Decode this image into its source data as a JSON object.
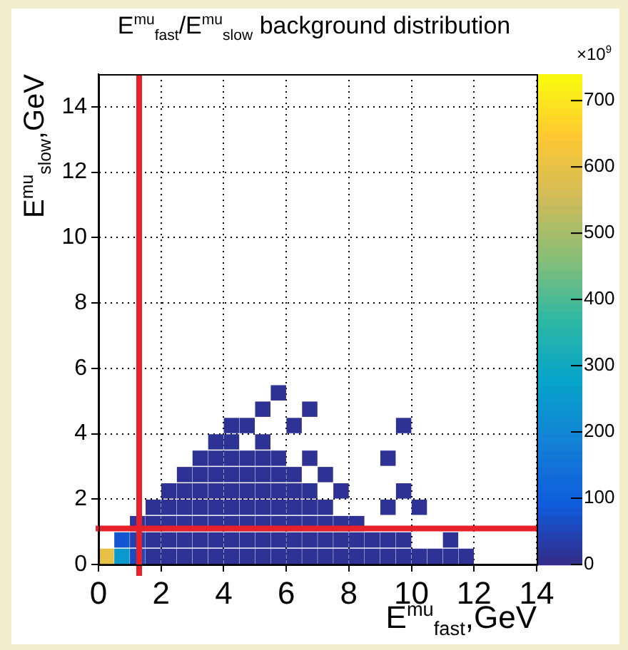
{
  "chart_data": {
    "type": "scatter",
    "title": "E$^{mu}$$_{fast}$/E$^{mu}$$_{slow}$ background distribution",
    "xlabel": "E$^{mu}$$_{fast}$,GeV",
    "ylabel": "E$^{mu}$$_{slow}$,GeV",
    "x": [
      0.25,
      0.75,
      0.75,
      1.25,
      1.25,
      1.25,
      1.75,
      1.75,
      1.75,
      1.75,
      2.25,
      2.25,
      2.25,
      2.25,
      2.25,
      2.75,
      2.75,
      2.75,
      2.75,
      2.75,
      2.75,
      3.25,
      3.25,
      3.25,
      3.25,
      3.25,
      3.25,
      3.25,
      3.75,
      3.75,
      3.75,
      3.75,
      3.75,
      3.75,
      3.75,
      3.75,
      4.25,
      4.25,
      4.25,
      4.25,
      4.25,
      4.25,
      4.25,
      4.25,
      4.25,
      4.75,
      4.75,
      4.75,
      4.75,
      4.75,
      4.75,
      4.75,
      4.75,
      5.25,
      5.25,
      5.25,
      5.25,
      5.25,
      5.25,
      5.25,
      5.25,
      5.25,
      5.75,
      5.75,
      5.75,
      5.75,
      5.75,
      5.75,
      5.75,
      5.75,
      6.25,
      6.25,
      6.25,
      6.25,
      6.25,
      6.25,
      6.25,
      6.75,
      6.75,
      6.75,
      6.75,
      6.75,
      6.75,
      6.75,
      7.25,
      7.25,
      7.25,
      7.25,
      7.25,
      7.75,
      7.75,
      7.75,
      7.75,
      8.25,
      8.25,
      8.25,
      8.75,
      8.75,
      9.25,
      9.25,
      9.25,
      9.25,
      9.75,
      9.75,
      9.75,
      9.75,
      10.25,
      10.25,
      10.75,
      11.25,
      11.25,
      11.75
    ],
    "values": [
      0.25,
      0.25,
      0.75,
      0.25,
      0.75,
      1.25,
      0.25,
      0.75,
      1.25,
      1.75,
      0.25,
      0.75,
      1.25,
      1.75,
      2.25,
      0.25,
      0.75,
      1.25,
      1.75,
      2.25,
      2.75,
      0.25,
      0.75,
      1.25,
      1.75,
      2.25,
      2.75,
      3.25,
      0.25,
      0.75,
      1.25,
      1.75,
      2.25,
      2.75,
      3.25,
      3.75,
      0.25,
      0.75,
      1.25,
      1.75,
      2.25,
      2.75,
      3.25,
      3.75,
      4.25,
      0.25,
      0.75,
      1.25,
      1.75,
      2.25,
      2.75,
      3.25,
      4.25,
      0.25,
      0.75,
      1.25,
      1.75,
      2.25,
      2.75,
      3.25,
      3.75,
      4.75,
      0.25,
      0.75,
      1.25,
      1.75,
      2.25,
      2.75,
      3.25,
      5.25,
      0.25,
      0.75,
      1.25,
      1.75,
      2.25,
      2.75,
      4.25,
      0.25,
      0.75,
      1.25,
      1.75,
      2.25,
      3.25,
      4.75,
      0.25,
      0.75,
      1.25,
      1.75,
      2.75,
      0.25,
      0.75,
      1.25,
      2.25,
      0.25,
      0.75,
      1.25,
      0.25,
      0.75,
      0.25,
      0.75,
      1.75,
      3.25,
      0.25,
      0.75,
      2.25,
      4.25,
      0.25,
      1.75,
      0.25,
      0.25,
      0.75,
      0.25
    ],
    "cvalues": [
      600,
      250,
      80,
      60,
      40,
      20,
      15,
      15,
      15,
      15,
      15,
      15,
      15,
      15,
      15,
      15,
      15,
      15,
      15,
      15,
      15,
      15,
      15,
      15,
      15,
      15,
      15,
      15,
      15,
      15,
      15,
      15,
      15,
      15,
      15,
      15,
      15,
      15,
      15,
      15,
      15,
      15,
      15,
      15,
      15,
      15,
      15,
      15,
      15,
      15,
      15,
      15,
      15,
      15,
      15,
      15,
      15,
      15,
      15,
      15,
      15,
      15,
      15,
      15,
      15,
      15,
      15,
      15,
      15,
      15,
      15,
      15,
      15,
      15,
      15,
      15,
      15,
      15,
      15,
      15,
      15,
      15,
      15,
      15,
      15,
      15,
      15,
      15,
      15,
      15,
      15,
      15,
      15,
      15,
      15,
      15,
      15,
      15,
      15,
      15,
      15,
      15,
      15,
      15,
      15,
      15,
      15,
      15,
      15,
      15,
      15,
      15
    ],
    "marker": "square",
    "xlim": [
      0,
      14
    ],
    "xticks": [
      0,
      2,
      4,
      6,
      8,
      10,
      12,
      14
    ],
    "ylim": [
      0,
      15
    ],
    "yticks": [
      0,
      2,
      4,
      6,
      8,
      10,
      12,
      14
    ],
    "clim": [
      0,
      740
    ],
    "cticks": [
      0,
      100,
      200,
      300,
      400,
      500,
      600,
      700
    ],
    "grid": true,
    "ref_lines": [
      {
        "axis": "x",
        "value": 1.3,
        "color": "#e8202a"
      },
      {
        "axis": "y",
        "value": 1.1,
        "color": "#e8202a"
      }
    ],
    "annotations": [
      "×10$^{9}$"
    ]
  }
}
